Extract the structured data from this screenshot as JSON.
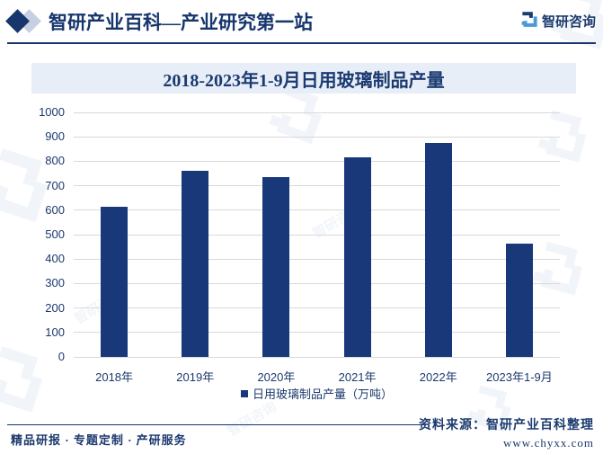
{
  "header": {
    "title": "智研产业百科—产业研究第一站",
    "brand": "智研咨询"
  },
  "chart_data": {
    "type": "bar",
    "title": "2018-2023年1-9月日用玻璃制品产量",
    "categories": [
      "2018年",
      "2019年",
      "2020年",
      "2021年",
      "2022年",
      "2023年1-9月"
    ],
    "values": [
      615,
      760,
      735,
      815,
      875,
      465
    ],
    "series_label": "日用玻璃制品产量（万吨）",
    "xlabel": "",
    "ylabel": "",
    "ylim": [
      0,
      1000
    ],
    "yticks": [
      0,
      100,
      200,
      300,
      400,
      500,
      600,
      700,
      800,
      900,
      1000
    ],
    "grid": true,
    "legend_position": "bottom",
    "bar_color": "#18387a"
  },
  "footer": {
    "left": "精品研报 · 专题定制 · 产研服务",
    "source": "资料来源：智研产业百科整理",
    "website": "www.chyxx.com"
  },
  "watermark": {
    "text": "智研咨询"
  },
  "colors": {
    "accent_navy": "#16366c",
    "bar": "#18387a",
    "title_band_bg": "#e7eef8",
    "gridline": "#d9d9d9",
    "logo_light_blue": "#4a9bd5",
    "watermark": "#5b87c0"
  }
}
